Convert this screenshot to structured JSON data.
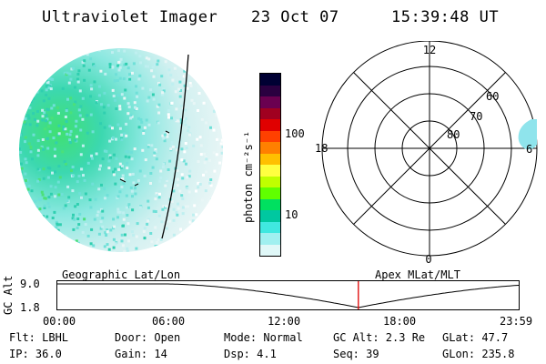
{
  "header": {
    "instrument": "Ultraviolet Imager",
    "date": "23 Oct 07",
    "time": "15:39:48 UT"
  },
  "colorbar": {
    "unit_label": "photon cm⁻²s⁻¹",
    "tick_labels": [
      "100",
      "10"
    ],
    "colors": [
      "#000033",
      "#2a0040",
      "#6a0050",
      "#a00020",
      "#e00000",
      "#ff4000",
      "#ff8000",
      "#ffc000",
      "#ffff40",
      "#c0ff00",
      "#60ff00",
      "#00e060",
      "#00c8a0",
      "#40e8e0",
      "#a0f0f0",
      "#e0f8f8"
    ]
  },
  "polar_plot": {
    "mlt_labels": [
      "12",
      "18",
      "6",
      "0"
    ],
    "mlat_labels": [
      "60",
      "70",
      "80"
    ]
  },
  "orbit": {
    "left_title": "Geographic Lat/Lon",
    "right_title": "Apex MLat/MLT",
    "axis_label": "GC Alt",
    "y_ticks": [
      "9.0",
      "1.8"
    ],
    "x_ticks": [
      "00:00",
      "06:00",
      "12:00",
      "18:00",
      "23:59"
    ],
    "current_marker_hour": 15.66,
    "marker_color": "#e00000"
  },
  "info": {
    "flt": "Flt: LBHL",
    "ip": "IP: 36.0",
    "door": "Door: Open",
    "gain": "Gain: 14",
    "mode": "Mode: Normal",
    "dsp": "Dsp:    4.1",
    "gcalt": "GC Alt: 2.3 Re",
    "seq": "Seq: 39",
    "glat": "GLat:  47.7",
    "glon": "GLon: 235.8"
  }
}
